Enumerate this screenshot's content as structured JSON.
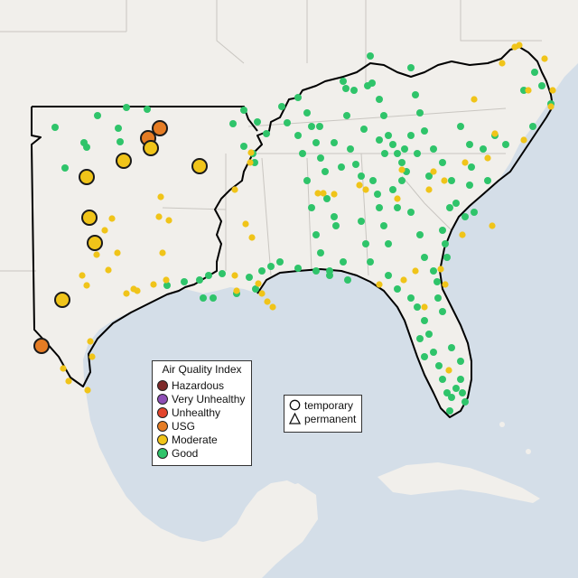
{
  "aqi_legend": {
    "title": "Air Quality Index",
    "items": [
      {
        "label": "Hazardous",
        "color": "#7e2a2a"
      },
      {
        "label": "Very Unhealthy",
        "color": "#8e4fb6"
      },
      {
        "label": "Unhealthy",
        "color": "#e3452c"
      },
      {
        "label": "USG",
        "color": "#e57c24"
      },
      {
        "label": "Moderate",
        "color": "#f0c419"
      },
      {
        "label": "Good",
        "color": "#2fc46a"
      }
    ]
  },
  "shape_legend": {
    "items": [
      {
        "label": "temporary",
        "icon": "circle-icon"
      },
      {
        "label": "permanent",
        "icon": "triangle-icon"
      }
    ]
  },
  "colors": {
    "water": "#d4dee8",
    "land": "#f1efeb",
    "borders": "#c9c6c1",
    "region_outline": "#000000"
  }
}
